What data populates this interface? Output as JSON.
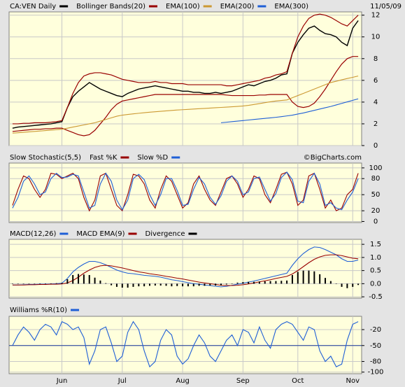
{
  "chart_data": [
    {
      "type": "line",
      "date": "11/05/09",
      "ylim": [
        0,
        12.3
      ],
      "yticks": [
        0,
        2,
        4,
        6,
        8,
        10,
        12
      ],
      "series": [
        {
          "name": "CA:VEN Daily",
          "color": "#000000",
          "values": [
            1.6,
            1.7,
            1.75,
            1.8,
            1.85,
            1.9,
            1.95,
            2.0,
            2.1,
            2.2,
            3.5,
            4.5,
            5.0,
            5.4,
            5.8,
            5.5,
            5.2,
            5.0,
            4.8,
            4.6,
            4.5,
            4.8,
            5.0,
            5.2,
            5.3,
            5.4,
            5.5,
            5.4,
            5.3,
            5.2,
            5.1,
            5.0,
            5.0,
            4.9,
            4.9,
            4.8,
            4.8,
            4.9,
            4.8,
            4.9,
            5.0,
            5.2,
            5.4,
            5.6,
            5.5,
            5.7,
            5.9,
            6.0,
            6.2,
            6.5,
            6.6,
            8.5,
            9.5,
            10.2,
            10.8,
            11.0,
            10.6,
            10.3,
            10.2,
            10.0,
            9.5,
            9.2,
            10.8,
            11.5
          ]
        },
        {
          "name": "Bollinger Bands(20)",
          "color": "#990000",
          "upper": [
            2.0,
            2.0,
            2.05,
            2.05,
            2.1,
            2.1,
            2.1,
            2.15,
            2.2,
            2.3,
            3.5,
            4.8,
            5.8,
            6.4,
            6.6,
            6.7,
            6.7,
            6.6,
            6.5,
            6.3,
            6.1,
            6.0,
            5.9,
            5.8,
            5.8,
            5.8,
            5.9,
            5.8,
            5.8,
            5.7,
            5.7,
            5.7,
            5.6,
            5.6,
            5.6,
            5.6,
            5.6,
            5.6,
            5.6,
            5.5,
            5.5,
            5.6,
            5.7,
            5.8,
            5.9,
            6.0,
            6.2,
            6.3,
            6.5,
            6.6,
            6.8,
            8.5,
            10.0,
            11.0,
            11.7,
            12.0,
            12.1,
            12.0,
            11.8,
            11.5,
            11.2,
            11.0,
            11.5,
            12.0
          ],
          "lower": [
            1.3,
            1.35,
            1.4,
            1.45,
            1.5,
            1.5,
            1.55,
            1.55,
            1.6,
            1.6,
            1.4,
            1.2,
            1.0,
            0.9,
            1.0,
            1.4,
            2.0,
            2.6,
            3.3,
            3.8,
            4.1,
            4.2,
            4.3,
            4.4,
            4.5,
            4.6,
            4.7,
            4.7,
            4.7,
            4.7,
            4.7,
            4.7,
            4.7,
            4.7,
            4.7,
            4.7,
            4.7,
            4.7,
            4.7,
            4.65,
            4.6,
            4.6,
            4.6,
            4.6,
            4.6,
            4.65,
            4.65,
            4.7,
            4.7,
            4.7,
            4.7,
            4.0,
            3.6,
            3.5,
            3.6,
            3.9,
            4.5,
            5.2,
            6.0,
            6.8,
            7.5,
            8.0,
            8.2,
            8.2
          ]
        },
        {
          "name": "EMA(100)",
          "color": "#cc9933",
          "values": [
            1.15,
            1.18,
            1.22,
            1.26,
            1.3,
            1.34,
            1.38,
            1.42,
            1.46,
            1.5,
            1.6,
            1.7,
            1.8,
            1.9,
            2.0,
            2.1,
            2.25,
            2.4,
            2.55,
            2.7,
            2.8,
            2.86,
            2.92,
            2.97,
            3.02,
            3.07,
            3.11,
            3.15,
            3.19,
            3.23,
            3.27,
            3.3,
            3.33,
            3.36,
            3.39,
            3.42,
            3.45,
            3.48,
            3.51,
            3.54,
            3.57,
            3.6,
            3.64,
            3.7,
            3.78,
            3.86,
            3.95,
            4.03,
            4.1,
            4.15,
            4.2,
            4.4,
            4.6,
            4.8,
            5.0,
            5.2,
            5.4,
            5.6,
            5.8,
            5.92,
            6.05,
            6.17,
            6.28,
            6.4
          ]
        },
        {
          "name": "EMA(200)",
          "color": "#1f5fd6",
          "values": [
            null,
            null,
            null,
            null,
            null,
            null,
            null,
            null,
            null,
            null,
            null,
            null,
            null,
            null,
            null,
            null,
            null,
            null,
            null,
            null,
            null,
            null,
            null,
            null,
            null,
            null,
            null,
            null,
            null,
            null,
            null,
            null,
            null,
            null,
            null,
            null,
            null,
            null,
            2.1,
            2.15,
            2.2,
            2.25,
            2.3,
            2.35,
            2.4,
            2.45,
            2.5,
            2.55,
            2.6,
            2.66,
            2.73,
            2.8,
            2.9,
            3.0,
            3.12,
            3.24,
            3.36,
            3.48,
            3.6,
            3.74,
            3.88,
            4.02,
            4.16,
            4.3
          ]
        },
        {
          "name": "EMA(300)"
        }
      ]
    },
    {
      "type": "line",
      "title": "Slow Stochastic(5,5)",
      "source": "©BigCharts.com",
      "ylim": [
        -2,
        109
      ],
      "yticks": [
        0,
        20,
        50,
        80,
        100
      ],
      "series": [
        {
          "name": "Fast %K",
          "color": "#990000",
          "values": [
            30,
            60,
            85,
            80,
            60,
            45,
            60,
            90,
            88,
            80,
            85,
            90,
            80,
            45,
            20,
            40,
            85,
            90,
            60,
            30,
            20,
            50,
            88,
            85,
            70,
            40,
            25,
            60,
            85,
            75,
            50,
            25,
            35,
            70,
            85,
            60,
            40,
            30,
            55,
            80,
            85,
            70,
            45,
            60,
            85,
            80,
            50,
            35,
            60,
            88,
            92,
            70,
            30,
            40,
            85,
            90,
            60,
            25,
            40,
            20,
            25,
            50,
            60,
            90
          ]
        },
        {
          "name": "Slow %D",
          "color": "#1f5fd6",
          "values": [
            25,
            45,
            75,
            85,
            70,
            50,
            55,
            80,
            90,
            82,
            83,
            88,
            85,
            55,
            25,
            30,
            70,
            90,
            75,
            40,
            22,
            40,
            80,
            88,
            78,
            50,
            30,
            50,
            80,
            80,
            58,
            30,
            32,
            60,
            82,
            70,
            45,
            32,
            48,
            75,
            85,
            75,
            50,
            55,
            80,
            83,
            60,
            38,
            52,
            82,
            92,
            78,
            38,
            35,
            75,
            90,
            70,
            30,
            35,
            25,
            22,
            40,
            55,
            80
          ]
        }
      ]
    },
    {
      "type": "line",
      "ylim": [
        -0.55,
        1.69
      ],
      "yticks": [
        1.5,
        {
          "value": 1.0,
          "label": "1.0"
        },
        0.5,
        {
          "value": 0.0,
          "label": "0.0"
        },
        -0.5
      ],
      "series": [
        {
          "name": "MACD(12,26)",
          "color": "#1f5fd6",
          "values": [
            -0.05,
            -0.05,
            -0.04,
            -0.03,
            -0.03,
            -0.02,
            -0.02,
            -0.01,
            0.0,
            0.02,
            0.2,
            0.45,
            0.62,
            0.75,
            0.85,
            0.85,
            0.8,
            0.72,
            0.62,
            0.52,
            0.45,
            0.4,
            0.38,
            0.35,
            0.32,
            0.3,
            0.28,
            0.25,
            0.2,
            0.15,
            0.12,
            0.08,
            0.04,
            0.0,
            -0.02,
            -0.05,
            -0.07,
            -0.1,
            -0.12,
            -0.1,
            -0.06,
            -0.02,
            0.02,
            0.06,
            0.1,
            0.15,
            0.2,
            0.25,
            0.3,
            0.35,
            0.4,
            0.7,
            0.95,
            1.15,
            1.3,
            1.4,
            1.38,
            1.3,
            1.2,
            1.1,
            0.95,
            0.85,
            0.85,
            0.9
          ]
        },
        {
          "name": "MACD EMA(9)",
          "color": "#990000",
          "values": [
            -0.05,
            -0.05,
            -0.05,
            -0.04,
            -0.04,
            -0.03,
            -0.03,
            -0.02,
            -0.02,
            -0.01,
            0.03,
            0.12,
            0.25,
            0.4,
            0.52,
            0.62,
            0.68,
            0.7,
            0.68,
            0.64,
            0.6,
            0.55,
            0.5,
            0.45,
            0.42,
            0.38,
            0.35,
            0.32,
            0.28,
            0.25,
            0.21,
            0.18,
            0.14,
            0.1,
            0.06,
            0.03,
            0.0,
            -0.03,
            -0.06,
            -0.07,
            -0.07,
            -0.06,
            -0.04,
            -0.01,
            0.03,
            0.07,
            0.11,
            0.15,
            0.2,
            0.24,
            0.28,
            0.37,
            0.5,
            0.65,
            0.8,
            0.93,
            1.02,
            1.08,
            1.1,
            1.1,
            1.07,
            1.02,
            0.97,
            0.95
          ]
        },
        {
          "name": "Divergence",
          "color": "#000000",
          "type": "bar",
          "values": [
            0,
            0,
            0.01,
            0.01,
            0.01,
            0.01,
            0.01,
            0.01,
            0.02,
            0.03,
            0.17,
            0.33,
            0.37,
            0.35,
            0.33,
            0.23,
            0.12,
            0.02,
            -0.06,
            -0.12,
            -0.15,
            -0.15,
            -0.12,
            -0.1,
            -0.1,
            -0.08,
            -0.07,
            -0.07,
            -0.08,
            -0.1,
            -0.09,
            -0.1,
            -0.1,
            -0.1,
            -0.08,
            -0.08,
            -0.07,
            -0.07,
            -0.06,
            -0.03,
            0.01,
            0.04,
            0.06,
            0.07,
            0.07,
            0.08,
            0.09,
            0.1,
            0.1,
            0.11,
            0.12,
            0.33,
            0.45,
            0.5,
            0.5,
            0.47,
            0.36,
            0.22,
            0.1,
            0,
            -0.12,
            -0.17,
            -0.12,
            -0.05
          ]
        }
      ]
    },
    {
      "type": "line",
      "ylim": [
        -103,
        5
      ],
      "yticks": [
        -20,
        -50,
        -80,
        -100
      ],
      "reference_line": -50,
      "categories": [
        null,
        null,
        null,
        null,
        null,
        null,
        null,
        null,
        null,
        "Jun",
        null,
        null,
        null,
        null,
        null,
        null,
        null,
        null,
        null,
        null,
        "Jul",
        null,
        null,
        null,
        null,
        null,
        null,
        null,
        null,
        null,
        null,
        "Aug",
        null,
        null,
        null,
        null,
        null,
        null,
        null,
        null,
        null,
        null,
        "Sep",
        null,
        null,
        null,
        null,
        null,
        null,
        null,
        null,
        null,
        "Oct",
        null,
        null,
        null,
        null,
        null,
        null,
        null,
        null,
        null,
        "Nov",
        null
      ],
      "series": [
        {
          "name": "Williams %R(10)",
          "color": "#1f5fd6",
          "values": [
            -50,
            -30,
            -15,
            -25,
            -40,
            -20,
            -10,
            -15,
            -30,
            -5,
            -10,
            -20,
            -15,
            -35,
            -85,
            -60,
            -20,
            -15,
            -45,
            -80,
            -70,
            -25,
            -5,
            -20,
            -60,
            -90,
            -80,
            -40,
            -20,
            -30,
            -70,
            -85,
            -75,
            -50,
            -30,
            -45,
            -70,
            -80,
            -60,
            -40,
            -30,
            -50,
            -20,
            -25,
            -45,
            -15,
            -40,
            -55,
            -20,
            -10,
            -5,
            -10,
            -25,
            -40,
            -15,
            -20,
            -60,
            -80,
            -70,
            -90,
            -85,
            -40,
            -10,
            -5
          ]
        }
      ]
    }
  ]
}
